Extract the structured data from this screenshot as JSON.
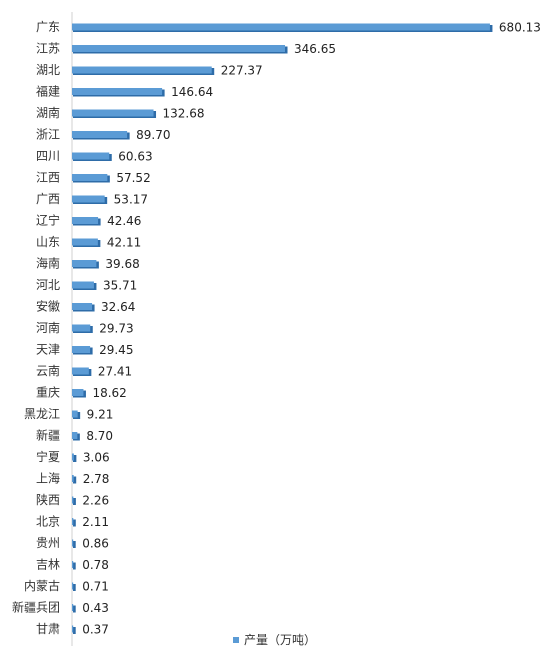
{
  "chart_data": {
    "type": "bar",
    "orientation": "horizontal",
    "categories": [
      "广东",
      "江苏",
      "湖北",
      "福建",
      "湖南",
      "浙江",
      "四川",
      "江西",
      "广西",
      "辽宁",
      "山东",
      "海南",
      "河北",
      "安徽",
      "河南",
      "天津",
      "云南",
      "重庆",
      "黑龙江",
      "新疆",
      "宁夏",
      "上海",
      "陕西",
      "北京",
      "贵州",
      "吉林",
      "内蒙古",
      "新疆兵团",
      "甘肃"
    ],
    "series": [
      {
        "name": "产量（万吨）",
        "values": [
          680.13,
          346.65,
          227.37,
          146.64,
          132.68,
          89.7,
          60.63,
          57.52,
          53.17,
          42.46,
          42.11,
          39.68,
          35.71,
          32.64,
          29.73,
          29.45,
          27.41,
          18.62,
          9.21,
          8.7,
          3.06,
          2.78,
          2.26,
          2.11,
          0.86,
          0.78,
          0.71,
          0.43,
          0.37
        ],
        "labels": [
          "680.13",
          "346.65",
          "227.37",
          "146.64",
          "132.68",
          "89.70",
          "60.63",
          "57.52",
          "53.17",
          "42.46",
          "42.11",
          "39.68",
          "35.71",
          "32.64",
          "29.73",
          "29.45",
          "27.41",
          "18.62",
          "9.21",
          "8.70",
          "3.06",
          "2.78",
          "2.26",
          "2.11",
          "0.86",
          "0.78",
          "0.71",
          "0.43",
          "0.37"
        ]
      }
    ],
    "xlim": [
      0,
      690
    ],
    "grid": false,
    "legend_position": "bottom",
    "bar_color": "#5B9BD5",
    "bar_shadow_color": "#2E6CA8"
  }
}
